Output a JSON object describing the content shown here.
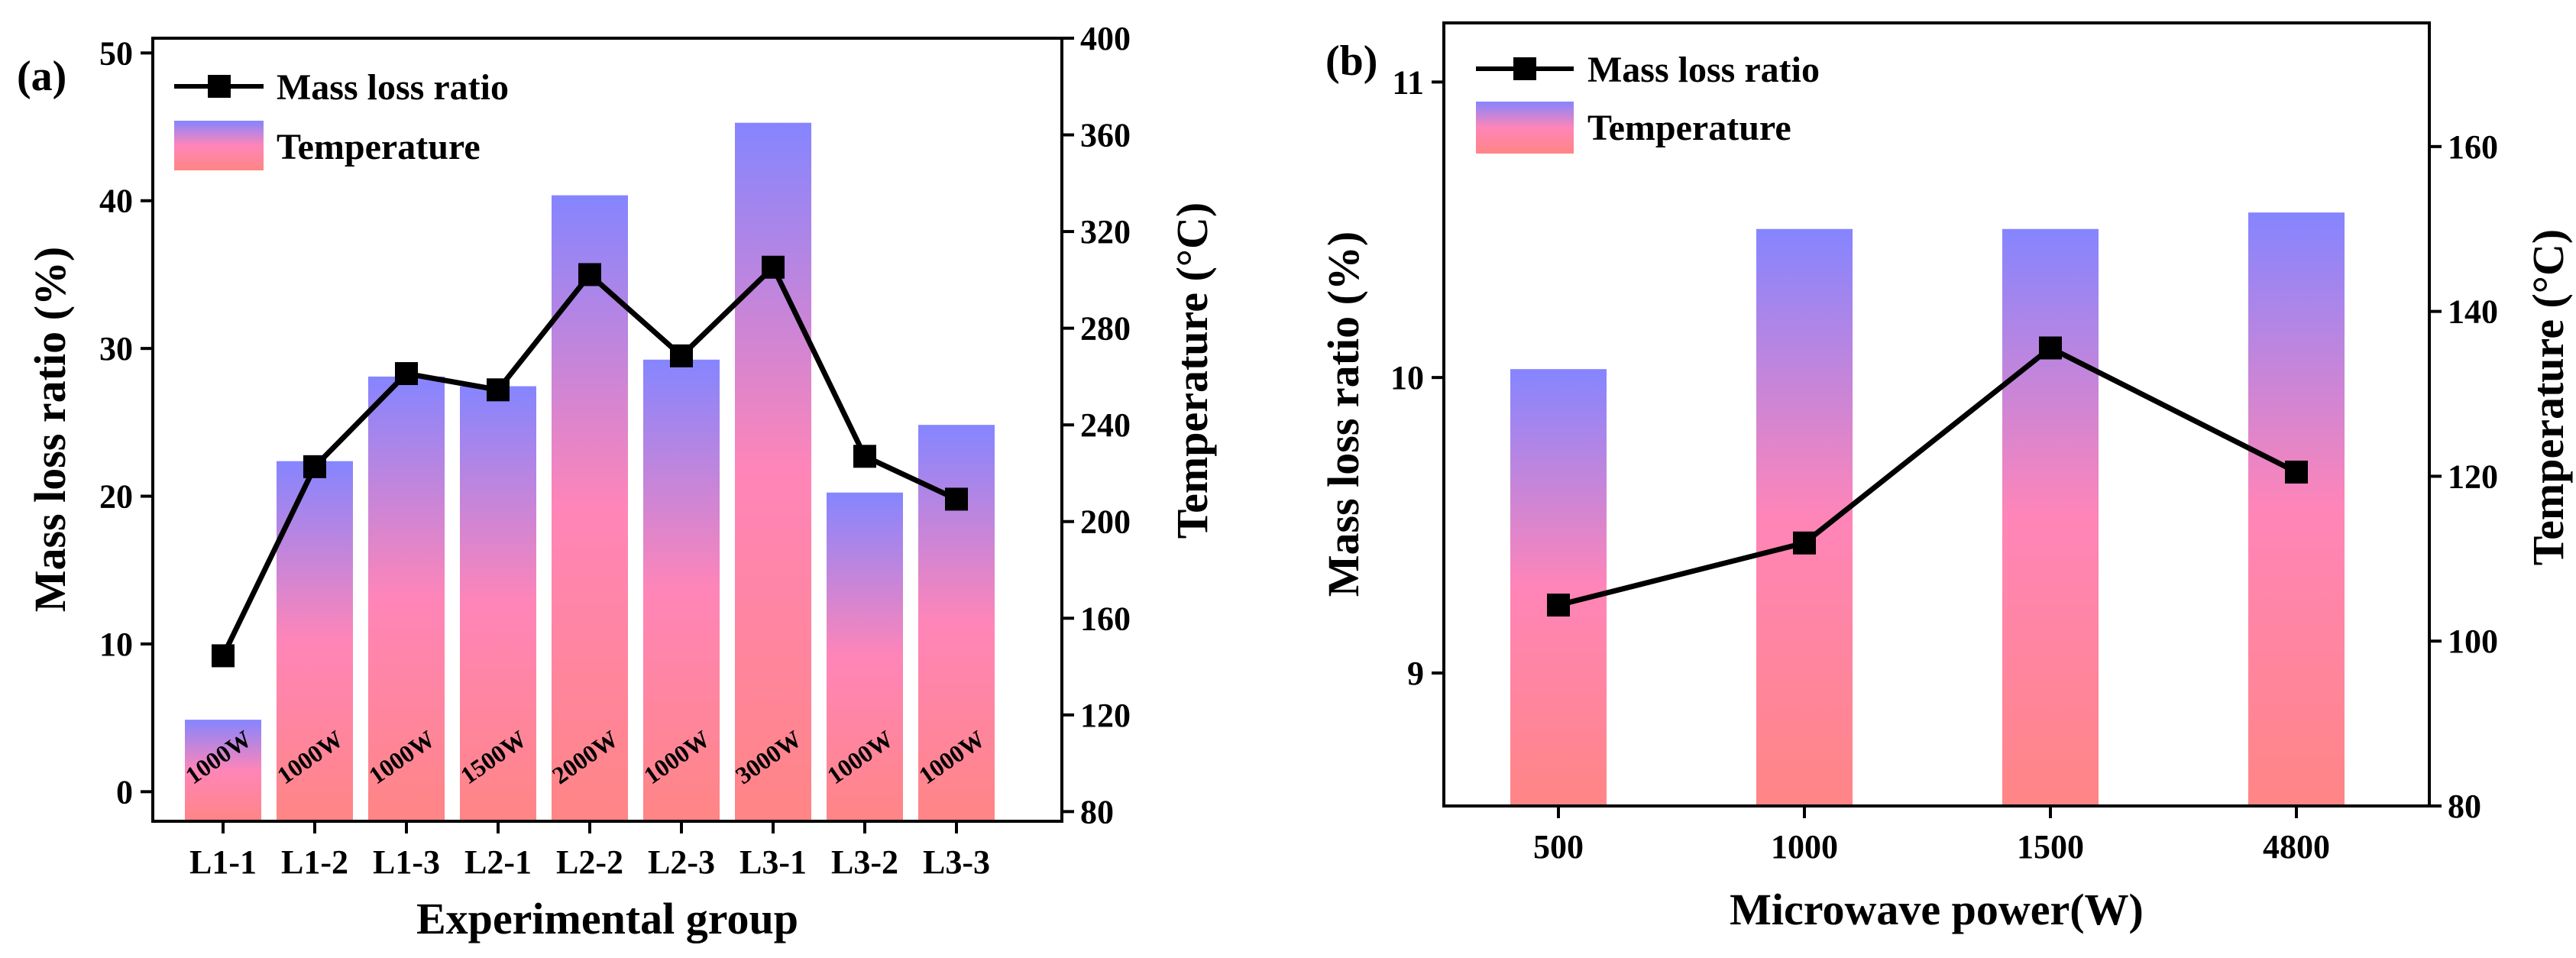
{
  "chart_data": [
    {
      "panel_label": "(a)",
      "type": "bar+line",
      "xlabel": "Experimental group",
      "ylabel_left": "Mass loss ratio (%)",
      "ylabel_right": "Temperature (°C)",
      "categories": [
        "L1-1",
        "L1-2",
        "L1-3",
        "L2-1",
        "L2-2",
        "L2-3",
        "L3-1",
        "L3-2",
        "L3-3"
      ],
      "bar_labels": [
        "1000W",
        "1000W",
        "1000W",
        "1500W",
        "2000W",
        "1000W",
        "3000W",
        "1000W",
        "1000W"
      ],
      "series": [
        {
          "name": "Mass loss ratio",
          "kind": "line",
          "axis": "left",
          "values": [
            9.2,
            22.0,
            28.3,
            27.2,
            35.0,
            29.5,
            35.5,
            22.7,
            19.8
          ]
        },
        {
          "name": "Temperature",
          "kind": "bar",
          "axis": "right",
          "values": [
            118,
            225,
            260,
            256,
            335,
            267,
            365,
            212,
            240
          ]
        }
      ],
      "ylim_left": [
        -2,
        51
      ],
      "ylim_right": [
        76,
        400
      ],
      "yticks_left": [
        0,
        10,
        20,
        30,
        40,
        50
      ],
      "yticks_right": [
        80,
        120,
        160,
        200,
        240,
        280,
        320,
        360,
        400
      ],
      "legend": "top-left",
      "grid": false,
      "colors": {
        "line": "#000000",
        "bar_top": "#8585ff",
        "bar_mid": "#ff85b8",
        "bar_bottom": "#ff8585"
      }
    },
    {
      "panel_label": "(b)",
      "type": "bar+line",
      "xlabel": "Microwave power(W)",
      "ylabel_left": "Mass loss ratio (%)",
      "ylabel_right": "Temperature (°C)",
      "categories": [
        "500",
        "1000",
        "1500",
        "4800"
      ],
      "series": [
        {
          "name": "Mass loss ratio",
          "kind": "line",
          "axis": "left",
          "values": [
            9.23,
            9.44,
            10.1,
            9.68
          ]
        },
        {
          "name": "Temperature",
          "kind": "bar",
          "axis": "right",
          "values": [
            133,
            150,
            150,
            152
          ]
        }
      ],
      "ylim_left": [
        8.55,
        11.2
      ],
      "ylim_right": [
        80,
        175
      ],
      "yticks_left": [
        9,
        10,
        11
      ],
      "yticks_right": [
        80,
        100,
        120,
        140,
        160
      ],
      "legend": "top-left",
      "grid": false,
      "colors": {
        "line": "#000000",
        "bar_top": "#8585ff",
        "bar_mid": "#ff85b8",
        "bar_bottom": "#ff8585"
      }
    }
  ]
}
